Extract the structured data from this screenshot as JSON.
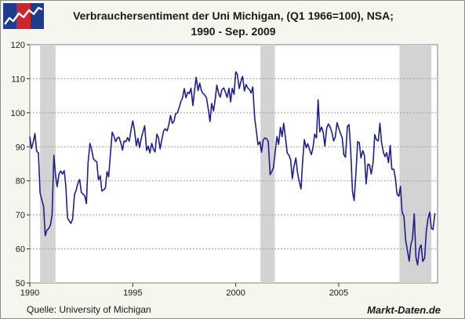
{
  "header": {
    "title_line1": "Verbrauchersentiment der Uni Michigan, (Q1 1966=100), NSA;",
    "title_line2": "1990 - Sep. 2009"
  },
  "footer": {
    "source": "Quelle: University of Michigan",
    "brand": "Markt-Daten.de"
  },
  "logo": {
    "icon": "rising-line-chart-logo",
    "colors": [
      "#1e3c8c",
      "#c8282d"
    ]
  },
  "chart_data": {
    "type": "line",
    "title": "Verbrauchersentiment der Uni Michigan, (Q1 1966=100), NSA; 1990 - Sep. 2009",
    "xlabel": "",
    "ylabel": "",
    "xlim": [
      1990.0,
      2009.8
    ],
    "ylim": [
      50,
      120
    ],
    "x_ticks": [
      1990,
      1995,
      2000,
      2005
    ],
    "x_tick_labels": [
      "1990",
      "1995",
      "2000",
      "2005"
    ],
    "y_ticks": [
      50,
      60,
      70,
      80,
      90,
      100,
      110,
      120
    ],
    "y_tick_labels": [
      "50",
      "60",
      "70",
      "80",
      "90",
      "100",
      "110",
      "120"
    ],
    "grid": true,
    "grid_axis": "y",
    "legend": "none",
    "line_color": "#1f1f8c",
    "recession_color": "#d3d3d3",
    "recessions": [
      [
        1990.5,
        1991.25
      ],
      [
        2001.2,
        2001.9
      ],
      [
        2007.95,
        2009.5
      ]
    ],
    "series": [
      {
        "points": [
          [
            1990.0,
            93.0
          ],
          [
            1990.08,
            89.5
          ],
          [
            1990.17,
            91.5
          ],
          [
            1990.25,
            93.9
          ],
          [
            1990.33,
            88.7
          ],
          [
            1990.42,
            88.2
          ],
          [
            1990.5,
            76.5
          ],
          [
            1990.58,
            74.5
          ],
          [
            1990.67,
            72.5
          ],
          [
            1990.75,
            63.9
          ],
          [
            1990.83,
            65.5
          ],
          [
            1990.92,
            66.0
          ],
          [
            1991.0,
            67.0
          ],
          [
            1991.08,
            70.0
          ],
          [
            1991.17,
            87.5
          ],
          [
            1991.25,
            81.8
          ],
          [
            1991.33,
            78.3
          ],
          [
            1991.42,
            82.1
          ],
          [
            1991.5,
            82.9
          ],
          [
            1991.58,
            82.0
          ],
          [
            1991.67,
            83.0
          ],
          [
            1991.75,
            78.3
          ],
          [
            1991.83,
            69.1
          ],
          [
            1991.92,
            68.2
          ],
          [
            1992.0,
            67.5
          ],
          [
            1992.08,
            68.8
          ],
          [
            1992.17,
            76.0
          ],
          [
            1992.25,
            77.2
          ],
          [
            1992.33,
            79.2
          ],
          [
            1992.42,
            80.4
          ],
          [
            1992.5,
            76.6
          ],
          [
            1992.58,
            76.1
          ],
          [
            1992.67,
            75.6
          ],
          [
            1992.75,
            73.3
          ],
          [
            1992.83,
            85.3
          ],
          [
            1992.92,
            91.0
          ],
          [
            1993.0,
            89.3
          ],
          [
            1993.08,
            86.6
          ],
          [
            1993.17,
            85.9
          ],
          [
            1993.25,
            85.6
          ],
          [
            1993.33,
            80.3
          ],
          [
            1993.42,
            81.5
          ],
          [
            1993.5,
            77.0
          ],
          [
            1993.58,
            77.3
          ],
          [
            1993.67,
            77.9
          ],
          [
            1993.75,
            82.7
          ],
          [
            1993.83,
            81.2
          ],
          [
            1993.92,
            88.2
          ],
          [
            1994.0,
            94.3
          ],
          [
            1994.08,
            93.2
          ],
          [
            1994.17,
            91.5
          ],
          [
            1994.25,
            92.6
          ],
          [
            1994.33,
            92.8
          ],
          [
            1994.42,
            91.2
          ],
          [
            1994.5,
            89.0
          ],
          [
            1994.58,
            91.7
          ],
          [
            1994.67,
            91.5
          ],
          [
            1994.75,
            92.7
          ],
          [
            1994.83,
            91.6
          ],
          [
            1994.92,
            95.1
          ],
          [
            1995.0,
            97.6
          ],
          [
            1995.08,
            95.1
          ],
          [
            1995.17,
            90.3
          ],
          [
            1995.25,
            92.5
          ],
          [
            1995.33,
            89.8
          ],
          [
            1995.42,
            92.7
          ],
          [
            1995.5,
            94.4
          ],
          [
            1995.58,
            96.2
          ],
          [
            1995.67,
            88.9
          ],
          [
            1995.75,
            90.2
          ],
          [
            1995.83,
            88.2
          ],
          [
            1995.92,
            91.0
          ],
          [
            1996.0,
            89.3
          ],
          [
            1996.08,
            88.5
          ],
          [
            1996.17,
            93.7
          ],
          [
            1996.25,
            92.7
          ],
          [
            1996.33,
            89.4
          ],
          [
            1996.42,
            92.4
          ],
          [
            1996.5,
            94.7
          ],
          [
            1996.58,
            95.3
          ],
          [
            1996.67,
            94.7
          ],
          [
            1996.75,
            96.5
          ],
          [
            1996.83,
            99.2
          ],
          [
            1996.92,
            96.9
          ],
          [
            1997.0,
            97.4
          ],
          [
            1997.08,
            99.7
          ],
          [
            1997.17,
            100.0
          ],
          [
            1997.25,
            101.4
          ],
          [
            1997.33,
            103.2
          ],
          [
            1997.42,
            104.5
          ],
          [
            1997.5,
            107.1
          ],
          [
            1997.58,
            104.4
          ],
          [
            1997.67,
            106.0
          ],
          [
            1997.75,
            105.6
          ],
          [
            1997.83,
            107.2
          ],
          [
            1997.92,
            102.1
          ],
          [
            1998.0,
            106.6
          ],
          [
            1998.08,
            110.4
          ],
          [
            1998.17,
            106.5
          ],
          [
            1998.25,
            108.7
          ],
          [
            1998.33,
            106.5
          ],
          [
            1998.42,
            105.6
          ],
          [
            1998.5,
            105.2
          ],
          [
            1998.58,
            104.4
          ],
          [
            1998.67,
            100.9
          ],
          [
            1998.75,
            97.4
          ],
          [
            1998.83,
            102.7
          ],
          [
            1998.92,
            100.5
          ],
          [
            1999.0,
            103.9
          ],
          [
            1999.08,
            108.1
          ],
          [
            1999.17,
            105.7
          ],
          [
            1999.25,
            104.6
          ],
          [
            1999.33,
            106.8
          ],
          [
            1999.42,
            107.3
          ],
          [
            1999.5,
            106.0
          ],
          [
            1999.58,
            104.5
          ],
          [
            1999.67,
            107.2
          ],
          [
            1999.75,
            103.2
          ],
          [
            1999.83,
            107.2
          ],
          [
            1999.92,
            105.4
          ],
          [
            2000.0,
            112.0
          ],
          [
            2000.08,
            111.3
          ],
          [
            2000.17,
            107.1
          ],
          [
            2000.25,
            109.2
          ],
          [
            2000.33,
            110.7
          ],
          [
            2000.42,
            106.4
          ],
          [
            2000.5,
            108.3
          ],
          [
            2000.58,
            107.3
          ],
          [
            2000.67,
            106.8
          ],
          [
            2000.75,
            105.8
          ],
          [
            2000.83,
            107.6
          ],
          [
            2000.92,
            98.4
          ],
          [
            2001.0,
            94.7
          ],
          [
            2001.08,
            90.6
          ],
          [
            2001.17,
            91.5
          ],
          [
            2001.25,
            88.4
          ],
          [
            2001.33,
            92.0
          ],
          [
            2001.42,
            92.6
          ],
          [
            2001.5,
            92.4
          ],
          [
            2001.58,
            91.5
          ],
          [
            2001.67,
            81.8
          ],
          [
            2001.75,
            82.7
          ],
          [
            2001.83,
            83.9
          ],
          [
            2001.92,
            88.8
          ],
          [
            2002.0,
            93.0
          ],
          [
            2002.08,
            90.7
          ],
          [
            2002.17,
            95.7
          ],
          [
            2002.25,
            93.0
          ],
          [
            2002.33,
            96.9
          ],
          [
            2002.42,
            92.4
          ],
          [
            2002.5,
            88.1
          ],
          [
            2002.58,
            87.6
          ],
          [
            2002.67,
            86.1
          ],
          [
            2002.75,
            80.6
          ],
          [
            2002.83,
            84.2
          ],
          [
            2002.92,
            86.7
          ],
          [
            2003.0,
            82.4
          ],
          [
            2003.08,
            79.9
          ],
          [
            2003.17,
            77.6
          ],
          [
            2003.25,
            86.0
          ],
          [
            2003.33,
            92.1
          ],
          [
            2003.42,
            89.7
          ],
          [
            2003.5,
            90.9
          ],
          [
            2003.58,
            89.3
          ],
          [
            2003.67,
            87.7
          ],
          [
            2003.75,
            89.6
          ],
          [
            2003.83,
            93.7
          ],
          [
            2003.92,
            92.6
          ],
          [
            2004.0,
            103.8
          ],
          [
            2004.08,
            94.4
          ],
          [
            2004.17,
            95.8
          ],
          [
            2004.25,
            94.2
          ],
          [
            2004.33,
            90.2
          ],
          [
            2004.42,
            95.6
          ],
          [
            2004.5,
            96.7
          ],
          [
            2004.58,
            95.9
          ],
          [
            2004.67,
            94.2
          ],
          [
            2004.75,
            91.7
          ],
          [
            2004.83,
            92.8
          ],
          [
            2004.92,
            97.1
          ],
          [
            2005.0,
            95.5
          ],
          [
            2005.08,
            94.1
          ],
          [
            2005.17,
            92.6
          ],
          [
            2005.25,
            87.7
          ],
          [
            2005.33,
            86.9
          ],
          [
            2005.42,
            96.0
          ],
          [
            2005.5,
            96.5
          ],
          [
            2005.58,
            89.1
          ],
          [
            2005.67,
            76.9
          ],
          [
            2005.75,
            74.2
          ],
          [
            2005.83,
            81.6
          ],
          [
            2005.92,
            91.5
          ],
          [
            2006.0,
            91.2
          ],
          [
            2006.08,
            86.7
          ],
          [
            2006.17,
            88.9
          ],
          [
            2006.25,
            87.4
          ],
          [
            2006.33,
            79.1
          ],
          [
            2006.42,
            84.9
          ],
          [
            2006.5,
            84.7
          ],
          [
            2006.58,
            82.0
          ],
          [
            2006.67,
            85.4
          ],
          [
            2006.75,
            93.6
          ],
          [
            2006.83,
            92.1
          ],
          [
            2006.92,
            91.7
          ],
          [
            2007.0,
            96.9
          ],
          [
            2007.08,
            91.3
          ],
          [
            2007.17,
            88.4
          ],
          [
            2007.25,
            87.1
          ],
          [
            2007.33,
            88.3
          ],
          [
            2007.42,
            85.3
          ],
          [
            2007.5,
            90.4
          ],
          [
            2007.58,
            83.4
          ],
          [
            2007.67,
            83.4
          ],
          [
            2007.75,
            80.9
          ],
          [
            2007.83,
            76.1
          ],
          [
            2007.92,
            75.5
          ],
          [
            2008.0,
            78.4
          ],
          [
            2008.08,
            70.8
          ],
          [
            2008.17,
            69.5
          ],
          [
            2008.25,
            62.6
          ],
          [
            2008.33,
            59.8
          ],
          [
            2008.42,
            56.4
          ],
          [
            2008.5,
            61.2
          ],
          [
            2008.58,
            63.0
          ],
          [
            2008.67,
            70.3
          ],
          [
            2008.75,
            57.6
          ],
          [
            2008.83,
            55.3
          ],
          [
            2008.92,
            60.1
          ],
          [
            2009.0,
            61.2
          ],
          [
            2009.08,
            56.3
          ],
          [
            2009.17,
            57.3
          ],
          [
            2009.25,
            65.1
          ],
          [
            2009.33,
            68.7
          ],
          [
            2009.42,
            70.8
          ],
          [
            2009.5,
            66.0
          ],
          [
            2009.58,
            65.7
          ],
          [
            2009.67,
            70.5
          ]
        ]
      }
    ]
  }
}
